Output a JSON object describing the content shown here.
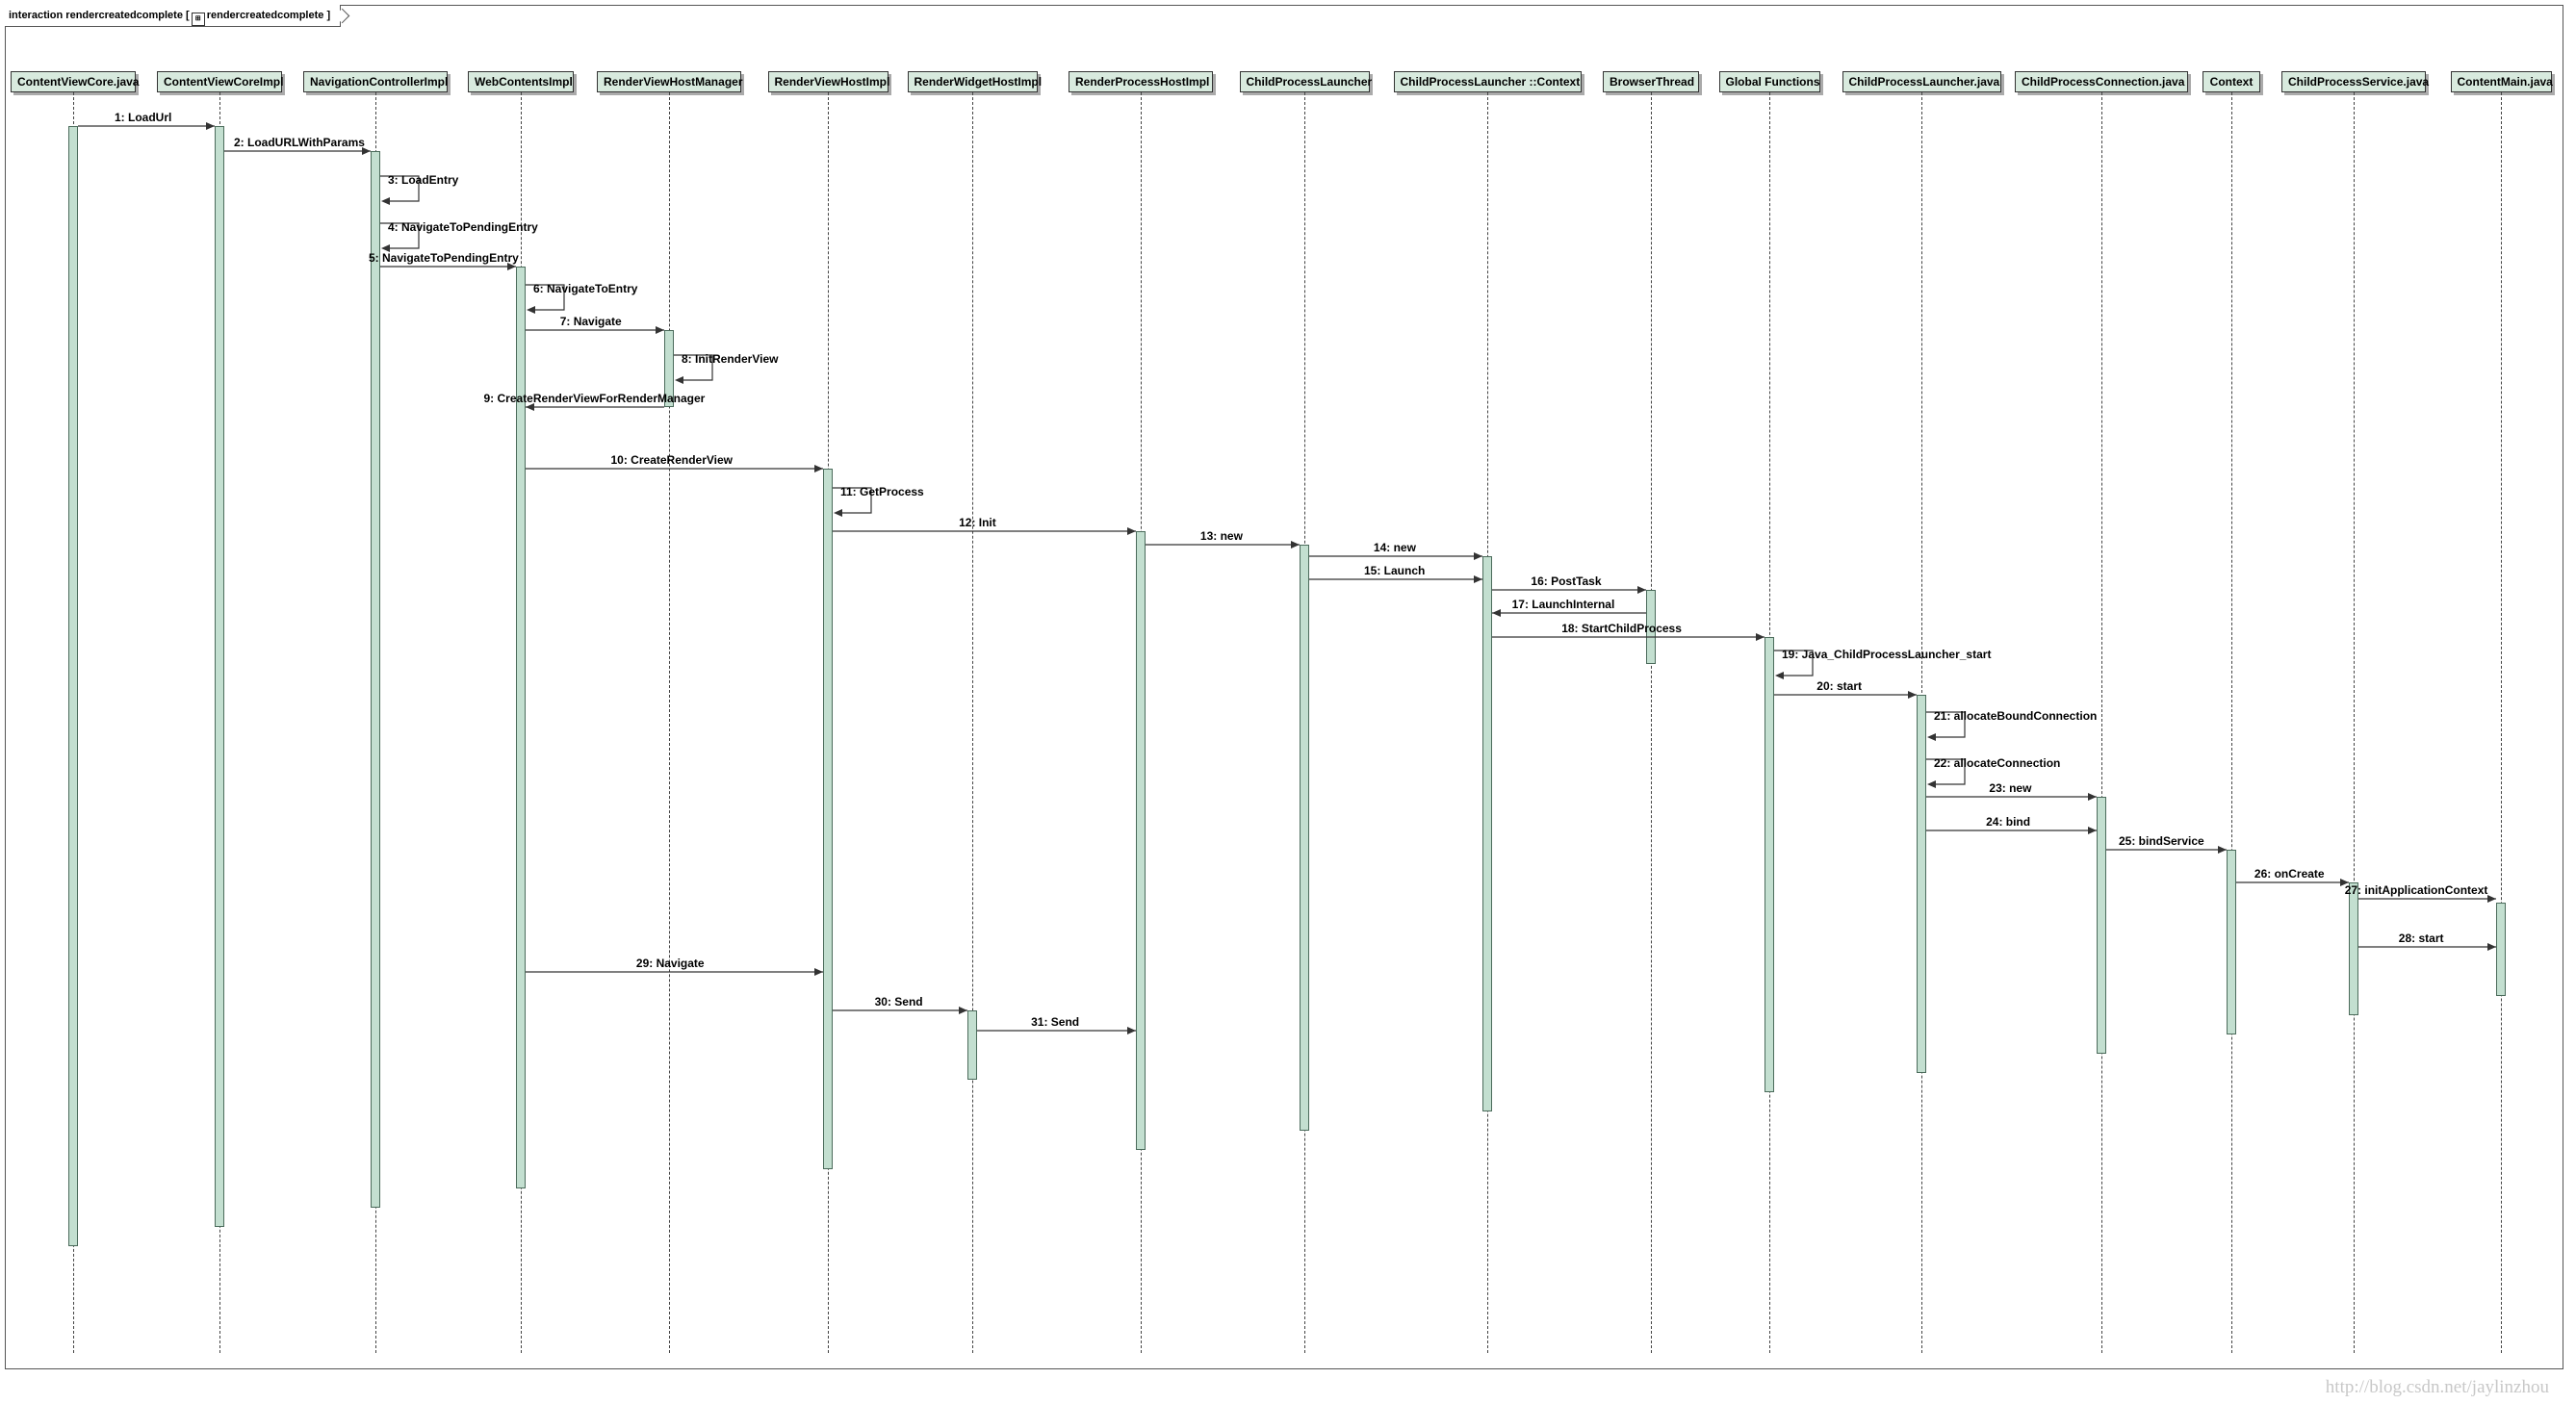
{
  "frame": {
    "keyword": "interaction",
    "name": "rendercreatedcomplete",
    "ref_name": "rendercreatedcomplete"
  },
  "lifelines": [
    {
      "id": "cvc",
      "label": "ContentViewCore.java"
    },
    {
      "id": "cvci",
      "label": "ContentViewCoreImpl"
    },
    {
      "id": "nci",
      "label": "NavigationControllerImpl"
    },
    {
      "id": "wci",
      "label": "WebContentsImpl"
    },
    {
      "id": "rvhm",
      "label": "RenderViewHostManager"
    },
    {
      "id": "rvhi",
      "label": "RenderViewHostImpl"
    },
    {
      "id": "rwhi",
      "label": "RenderWidgetHostImpl"
    },
    {
      "id": "rphi",
      "label": "RenderProcessHostImpl"
    },
    {
      "id": "cpl",
      "label": "ChildProcessLauncher"
    },
    {
      "id": "cplc",
      "label": "ChildProcessLauncher ::Context"
    },
    {
      "id": "bt",
      "label": "BrowserThread"
    },
    {
      "id": "gf",
      "label": "Global Functions"
    },
    {
      "id": "cplj",
      "label": "ChildProcessLauncher.java"
    },
    {
      "id": "cpc",
      "label": "ChildProcessConnection.java"
    },
    {
      "id": "ctx",
      "label": "Context"
    },
    {
      "id": "cps",
      "label": "ChildProcessService.java"
    },
    {
      "id": "cm",
      "label": "ContentMain.java"
    }
  ],
  "messages": [
    {
      "label": "1: LoadUrl",
      "from": "cvc",
      "to": "cvci"
    },
    {
      "label": "2: LoadURLWithParams",
      "from": "cvci",
      "to": "nci"
    },
    {
      "label": "3: LoadEntry",
      "from": "nci",
      "to": "nci"
    },
    {
      "label": "4: NavigateToPendingEntry",
      "from": "nci",
      "to": "nci"
    },
    {
      "label": "5: NavigateToPendingEntry",
      "from": "nci",
      "to": "wci"
    },
    {
      "label": "6: NavigateToEntry",
      "from": "wci",
      "to": "wci"
    },
    {
      "label": "7: Navigate",
      "from": "wci",
      "to": "rvhm"
    },
    {
      "label": "8: InitRenderView",
      "from": "rvhm",
      "to": "rvhm"
    },
    {
      "label": "9: CreateRenderViewForRenderManager",
      "from": "rvhm",
      "to": "wci"
    },
    {
      "label": "10: CreateRenderView",
      "from": "wci",
      "to": "rvhi"
    },
    {
      "label": "11: GetProcess",
      "from": "rvhi",
      "to": "rvhi"
    },
    {
      "label": "12: Init",
      "from": "rvhi",
      "to": "rphi"
    },
    {
      "label": "13: new",
      "from": "rphi",
      "to": "cpl"
    },
    {
      "label": "14: new",
      "from": "cpl",
      "to": "cplc"
    },
    {
      "label": "15: Launch",
      "from": "cpl",
      "to": "cplc"
    },
    {
      "label": "16: PostTask",
      "from": "cplc",
      "to": "bt"
    },
    {
      "label": "17: LaunchInternal",
      "from": "bt",
      "to": "cplc"
    },
    {
      "label": "18: StartChildProcess",
      "from": "cplc",
      "to": "gf"
    },
    {
      "label": "19: Java_ChildProcessLauncher_start",
      "from": "gf",
      "to": "gf"
    },
    {
      "label": "20: start",
      "from": "gf",
      "to": "cplj"
    },
    {
      "label": "21: allocateBoundConnection",
      "from": "cplj",
      "to": "cplj"
    },
    {
      "label": "22: allocateConnection",
      "from": "cplj",
      "to": "cplj"
    },
    {
      "label": "23: new",
      "from": "cplj",
      "to": "cpc"
    },
    {
      "label": "24: bind",
      "from": "cplj",
      "to": "cpc"
    },
    {
      "label": "25: bindService",
      "from": "cpc",
      "to": "ctx"
    },
    {
      "label": "26: onCreate",
      "from": "ctx",
      "to": "cps"
    },
    {
      "label": "27: initApplicationContext",
      "from": "cps",
      "to": "cm"
    },
    {
      "label": "28: start",
      "from": "cps",
      "to": "cm"
    },
    {
      "label": "29: Navigate",
      "from": "wci",
      "to": "rvhi"
    },
    {
      "label": "30: Send",
      "from": "rvhi",
      "to": "rwhi"
    },
    {
      "label": "31: Send",
      "from": "rwhi",
      "to": "rphi"
    }
  ],
  "watermark": "http://blog.csdn.net/jaylinzhou",
  "colors": {
    "activation": "#c3dfd0",
    "header": "#d8eade",
    "line": "#444444"
  }
}
